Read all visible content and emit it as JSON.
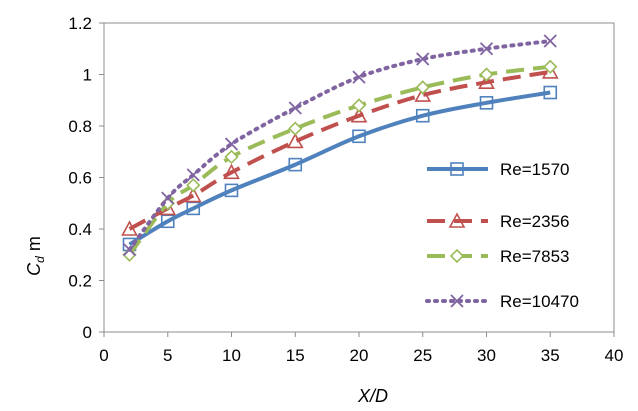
{
  "chart_data": {
    "type": "line",
    "title": "",
    "xlabel": "X/D",
    "ylabel": {
      "main": "C",
      "sub": "d",
      "suffix": " m"
    },
    "xlim": [
      0,
      40
    ],
    "ylim": [
      0,
      1.2
    ],
    "x_ticks": [
      "0",
      "5",
      "10",
      "15",
      "20",
      "25",
      "30",
      "35",
      "40"
    ],
    "y_ticks": [
      "0",
      "0.2",
      "0.4",
      "0.6",
      "0.8",
      "1",
      "1.2"
    ],
    "grid": false,
    "legend_position": "right",
    "x": [
      2,
      5,
      7,
      10,
      15,
      20,
      25,
      30,
      35
    ],
    "series": [
      {
        "name": "Re=1570",
        "values": [
          0.34,
          0.43,
          0.48,
          0.55,
          0.65,
          0.76,
          0.84,
          0.89,
          0.93
        ],
        "color": "#4f81bd",
        "marker": "square",
        "line": "solid"
      },
      {
        "name": "Re=2356",
        "values": [
          0.4,
          0.48,
          0.53,
          0.62,
          0.74,
          0.84,
          0.92,
          0.97,
          1.01
        ],
        "color": "#c0504d",
        "marker": "triangle",
        "line": "dash"
      },
      {
        "name": "Re=7853",
        "values": [
          0.3,
          0.5,
          0.57,
          0.68,
          0.79,
          0.88,
          0.95,
          1.0,
          1.03
        ],
        "color": "#9bbb59",
        "marker": "diamond",
        "line": "dash"
      },
      {
        "name": "Re=10470",
        "values": [
          0.32,
          0.52,
          0.61,
          0.73,
          0.87,
          0.99,
          1.06,
          1.1,
          1.13
        ],
        "color": "#8064a2",
        "marker": "x",
        "line": "dot"
      }
    ]
  }
}
